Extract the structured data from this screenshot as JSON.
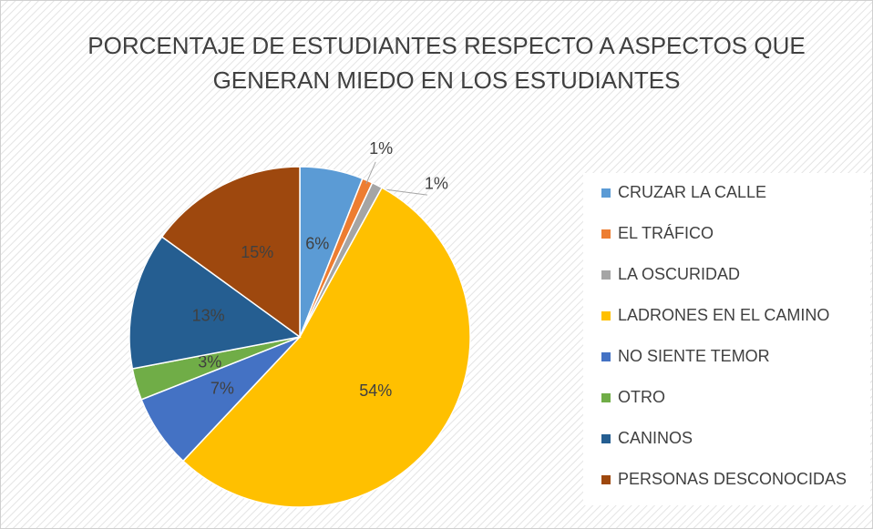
{
  "chart_data": {
    "type": "pie",
    "title": [
      "PORCENTAJE DE ESTUDIANTES RESPECTO A ASPECTOS QUE",
      "GENERAN MIEDO EN LOS ESTUDIANTES"
    ],
    "categories": [
      "CRUZAR LA CALLE",
      "EL TRÁFICO",
      "LA OSCURIDAD",
      "LADRONES EN EL CAMINO",
      "NO SIENTE TEMOR",
      "OTRO",
      "CANINOS",
      "PERSONAS DESCONOCIDAS"
    ],
    "values": [
      6,
      1,
      1,
      54,
      7,
      3,
      13,
      15
    ],
    "value_labels": [
      "6%",
      "1%",
      "1%",
      "54%",
      "7%",
      "3%",
      "13%",
      "15%"
    ],
    "colors": [
      "#5b9bd5",
      "#ed7d31",
      "#a5a5a5",
      "#ffc000",
      "#4472c4",
      "#70ad47",
      "#255e91",
      "#9e480e"
    ],
    "legend": "right"
  }
}
